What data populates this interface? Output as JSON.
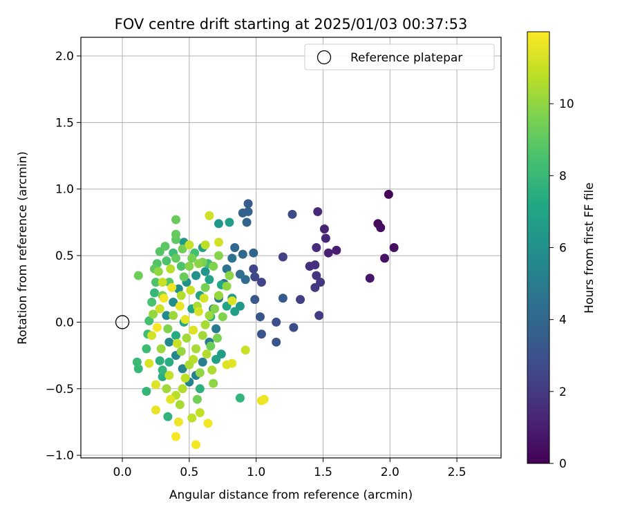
{
  "chart_data": {
    "type": "scatter",
    "title": "FOV centre drift starting at 2025/01/03 00:37:53",
    "xlabel": "Angular distance from reference (arcmin)",
    "ylabel": "Rotation from reference (arcmin)",
    "xlim": [
      -0.31,
      2.83
    ],
    "ylim": [
      -1.02,
      2.14
    ],
    "xticks": [
      0.0,
      0.5,
      1.0,
      1.5,
      2.0,
      2.5
    ],
    "xtick_labels": [
      "0.0",
      "0.5",
      "1.0",
      "1.5",
      "2.0",
      "2.5"
    ],
    "yticks": [
      -1.0,
      -0.5,
      0.0,
      0.5,
      1.0,
      1.5,
      2.0
    ],
    "ytick_labels": [
      "−1.0",
      "−0.5",
      "0.0",
      "0.5",
      "1.0",
      "1.5",
      "2.0"
    ],
    "grid": true,
    "legend": {
      "position": "top-right",
      "entries": [
        "Reference platepar"
      ]
    },
    "reference_point": {
      "x": 0.0,
      "y": 0.0
    },
    "colorbar": {
      "label": "Hours from first FF file",
      "range": [
        0,
        12
      ],
      "ticks": [
        0,
        2,
        4,
        6,
        8,
        10
      ],
      "tick_labels": [
        "0",
        "2",
        "4",
        "6",
        "8",
        "10"
      ],
      "colormap": "viridis"
    },
    "points": [
      {
        "x": 1.99,
        "y": 0.96,
        "c": 0.1
      },
      {
        "x": 1.91,
        "y": 0.74,
        "c": 0.3
      },
      {
        "x": 1.93,
        "y": 0.71,
        "c": 0.4
      },
      {
        "x": 2.03,
        "y": 0.56,
        "c": 0.5
      },
      {
        "x": 1.96,
        "y": 0.48,
        "c": 0.6
      },
      {
        "x": 1.85,
        "y": 0.33,
        "c": 0.8
      },
      {
        "x": 1.6,
        "y": 0.54,
        "c": 1.0
      },
      {
        "x": 1.54,
        "y": 0.52,
        "c": 1.1
      },
      {
        "x": 1.51,
        "y": 0.7,
        "c": 1.2
      },
      {
        "x": 1.52,
        "y": 0.63,
        "c": 1.3
      },
      {
        "x": 1.46,
        "y": 0.83,
        "c": 1.4
      },
      {
        "x": 1.45,
        "y": 0.56,
        "c": 1.5
      },
      {
        "x": 1.4,
        "y": 0.42,
        "c": 1.6
      },
      {
        "x": 1.44,
        "y": 0.43,
        "c": 1.7
      },
      {
        "x": 1.45,
        "y": 0.35,
        "c": 1.8
      },
      {
        "x": 1.48,
        "y": 0.3,
        "c": 1.9
      },
      {
        "x": 1.44,
        "y": 0.26,
        "c": 2.0
      },
      {
        "x": 1.47,
        "y": 0.05,
        "c": 2.1
      },
      {
        "x": 1.33,
        "y": 0.17,
        "c": 2.2
      },
      {
        "x": 1.2,
        "y": 0.49,
        "c": 2.3
      },
      {
        "x": 1.04,
        "y": 0.3,
        "c": 2.4
      },
      {
        "x": 0.98,
        "y": 0.4,
        "c": 2.5
      },
      {
        "x": 0.99,
        "y": 0.34,
        "c": 2.6
      },
      {
        "x": 1.27,
        "y": 0.81,
        "c": 2.7
      },
      {
        "x": 1.28,
        "y": -0.04,
        "c": 2.8
      },
      {
        "x": 1.15,
        "y": 0.0,
        "c": 2.9
      },
      {
        "x": 1.15,
        "y": -0.15,
        "c": 3.0
      },
      {
        "x": 1.04,
        "y": -0.09,
        "c": 3.1
      },
      {
        "x": 1.03,
        "y": 0.04,
        "c": 3.2
      },
      {
        "x": 0.99,
        "y": 0.17,
        "c": 3.3
      },
      {
        "x": 1.2,
        "y": 0.18,
        "c": 3.4
      },
      {
        "x": 0.94,
        "y": 0.89,
        "c": 3.5
      },
      {
        "x": 0.9,
        "y": 0.82,
        "c": 3.6
      },
      {
        "x": 0.94,
        "y": 0.83,
        "c": 3.7
      },
      {
        "x": 0.93,
        "y": 0.75,
        "c": 3.8
      },
      {
        "x": 0.98,
        "y": 0.52,
        "c": 3.9
      },
      {
        "x": 0.9,
        "y": 0.51,
        "c": 4.0
      },
      {
        "x": 0.84,
        "y": 0.56,
        "c": 4.1
      },
      {
        "x": 0.92,
        "y": 0.32,
        "c": 4.2
      },
      {
        "x": 0.88,
        "y": 0.36,
        "c": 4.3
      },
      {
        "x": 0.82,
        "y": 0.48,
        "c": 4.4
      },
      {
        "x": 0.78,
        "y": 0.4,
        "c": 4.5
      },
      {
        "x": 0.76,
        "y": 0.29,
        "c": 4.6
      },
      {
        "x": 0.72,
        "y": 0.18,
        "c": 4.7
      },
      {
        "x": 0.68,
        "y": 0.1,
        "c": 4.8
      },
      {
        "x": 0.7,
        "y": -0.05,
        "c": 4.9
      },
      {
        "x": 0.65,
        "y": -0.15,
        "c": 5.0
      },
      {
        "x": 0.6,
        "y": -0.3,
        "c": 5.1
      },
      {
        "x": 0.55,
        "y": -0.4,
        "c": 5.2
      },
      {
        "x": 0.5,
        "y": -0.45,
        "c": 5.3
      },
      {
        "x": 0.45,
        "y": -0.35,
        "c": 5.4
      },
      {
        "x": 0.4,
        "y": -0.25,
        "c": 5.5
      },
      {
        "x": 0.35,
        "y": -0.15,
        "c": 5.6
      },
      {
        "x": 0.33,
        "y": 0.05,
        "c": 5.7
      },
      {
        "x": 0.38,
        "y": 0.15,
        "c": 5.8
      },
      {
        "x": 0.42,
        "y": 0.25,
        "c": 5.9
      },
      {
        "x": 0.48,
        "y": 0.3,
        "c": 6.0
      },
      {
        "x": 0.55,
        "y": 0.35,
        "c": 6.1
      },
      {
        "x": 0.62,
        "y": 0.38,
        "c": 6.2
      },
      {
        "x": 0.72,
        "y": 0.74,
        "c": 6.3
      },
      {
        "x": 0.88,
        "y": 0.12,
        "c": 6.4
      },
      {
        "x": 0.82,
        "y": 0.18,
        "c": 6.5
      },
      {
        "x": 0.8,
        "y": 0.75,
        "c": 6.6
      },
      {
        "x": 0.74,
        "y": -0.24,
        "c": 6.7
      },
      {
        "x": 0.7,
        "y": -0.28,
        "c": 6.8
      },
      {
        "x": 0.65,
        "y": 0.32,
        "c": 6.9
      },
      {
        "x": 0.58,
        "y": 0.2,
        "c": 7.0
      },
      {
        "x": 0.52,
        "y": 0.1,
        "c": 7.1
      },
      {
        "x": 0.46,
        "y": 0.0,
        "c": 7.2
      },
      {
        "x": 0.4,
        "y": -0.1,
        "c": 7.3
      },
      {
        "x": 0.35,
        "y": -0.3,
        "c": 7.4
      },
      {
        "x": 0.3,
        "y": -0.41,
        "c": 7.5
      },
      {
        "x": 0.28,
        "y": -0.29,
        "c": 7.6
      },
      {
        "x": 0.34,
        "y": -0.71,
        "c": 7.7
      },
      {
        "x": 0.88,
        "y": -0.57,
        "c": 7.8
      },
      {
        "x": 0.18,
        "y": -0.52,
        "c": 7.9
      },
      {
        "x": 0.12,
        "y": -0.35,
        "c": 8.0
      },
      {
        "x": 0.11,
        "y": -0.3,
        "c": 8.1
      },
      {
        "x": 0.18,
        "y": -0.2,
        "c": 8.2
      },
      {
        "x": 0.19,
        "y": -0.09,
        "c": 8.3
      },
      {
        "x": 0.2,
        "y": 0.01,
        "c": 8.4
      },
      {
        "x": 0.22,
        "y": 0.15,
        "c": 8.5
      },
      {
        "x": 0.25,
        "y": 0.3,
        "c": 8.6
      },
      {
        "x": 0.26,
        "y": 0.44,
        "c": 8.7
      },
      {
        "x": 0.28,
        "y": 0.53,
        "c": 8.8
      },
      {
        "x": 0.32,
        "y": 0.57,
        "c": 8.9
      },
      {
        "x": 0.4,
        "y": 0.62,
        "c": 9.0
      },
      {
        "x": 0.4,
        "y": 0.66,
        "c": 9.1
      },
      {
        "x": 0.4,
        "y": 0.77,
        "c": 9.2
      },
      {
        "x": 0.12,
        "y": 0.35,
        "c": 9.3
      },
      {
        "x": 0.45,
        "y": 0.55,
        "c": 9.4
      },
      {
        "x": 0.52,
        "y": 0.48,
        "c": 9.5
      },
      {
        "x": 0.6,
        "y": 0.45,
        "c": 9.6
      },
      {
        "x": 0.68,
        "y": 0.42,
        "c": 9.7
      },
      {
        "x": 0.72,
        "y": 0.5,
        "c": 9.8
      },
      {
        "x": 0.8,
        "y": 0.35,
        "c": 9.9
      },
      {
        "x": 0.78,
        "y": 0.27,
        "c": 10.0
      },
      {
        "x": 0.72,
        "y": 0.2,
        "c": 10.1
      },
      {
        "x": 0.65,
        "y": 0.05,
        "c": 10.2
      },
      {
        "x": 0.6,
        "y": -0.1,
        "c": 10.3
      },
      {
        "x": 0.55,
        "y": -0.2,
        "c": 10.4
      },
      {
        "x": 0.5,
        "y": -0.32,
        "c": 10.5
      },
      {
        "x": 0.45,
        "y": -0.5,
        "c": 10.6
      },
      {
        "x": 0.4,
        "y": -0.55,
        "c": 10.7
      },
      {
        "x": 0.52,
        "y": -0.72,
        "c": 10.8
      },
      {
        "x": 0.58,
        "y": -0.68,
        "c": 10.9
      },
      {
        "x": 0.92,
        "y": -0.21,
        "c": 11.0
      },
      {
        "x": 0.65,
        "y": 0.8,
        "c": 11.1
      },
      {
        "x": 0.72,
        "y": 0.6,
        "c": 11.2
      },
      {
        "x": 0.82,
        "y": 0.16,
        "c": 11.3
      },
      {
        "x": 0.78,
        "y": -0.32,
        "c": 11.4
      },
      {
        "x": 0.82,
        "y": -0.31,
        "c": 11.5
      },
      {
        "x": 1.04,
        "y": -0.59,
        "c": 11.6
      },
      {
        "x": 1.06,
        "y": -0.58,
        "c": 11.7
      },
      {
        "x": 0.55,
        "y": -0.92,
        "c": 11.8
      },
      {
        "x": 0.4,
        "y": -0.86,
        "c": 11.9
      },
      {
        "x": 0.64,
        "y": -0.76,
        "c": 11.8
      },
      {
        "x": 0.42,
        "y": -0.75,
        "c": 11.7
      },
      {
        "x": 0.25,
        "y": -0.66,
        "c": 11.6
      },
      {
        "x": 0.36,
        "y": -0.58,
        "c": 11.5
      },
      {
        "x": 0.25,
        "y": -0.47,
        "c": 11.4
      },
      {
        "x": 0.2,
        "y": -0.31,
        "c": 11.3
      },
      {
        "x": 0.22,
        "y": -0.1,
        "c": 11.2
      },
      {
        "x": 0.28,
        "y": 0.1,
        "c": 11.1
      },
      {
        "x": 0.3,
        "y": 0.3,
        "c": 11.0
      },
      {
        "x": 0.5,
        "y": 0.58,
        "c": 10.9
      },
      {
        "x": 0.62,
        "y": 0.58,
        "c": 10.8
      },
      {
        "x": 0.36,
        "y": 0.4,
        "c": 10.7
      },
      {
        "x": 0.44,
        "y": 0.2,
        "c": 10.6
      },
      {
        "x": 0.56,
        "y": 0.12,
        "c": 10.5
      },
      {
        "x": 0.62,
        "y": -0.02,
        "c": 10.4
      },
      {
        "x": 0.48,
        "y": -0.12,
        "c": 10.3
      },
      {
        "x": 0.38,
        "y": 0.05,
        "c": 10.2
      },
      {
        "x": 0.44,
        "y": -0.22,
        "c": 10.1
      },
      {
        "x": 0.58,
        "y": -0.38,
        "c": 10.0
      },
      {
        "x": 0.68,
        "y": -0.46,
        "c": 9.9
      },
      {
        "x": 0.5,
        "y": 0.42,
        "c": 9.8
      },
      {
        "x": 0.34,
        "y": -0.05,
        "c": 9.7
      },
      {
        "x": 0.3,
        "y": 0.2,
        "c": 9.6
      },
      {
        "x": 0.62,
        "y": 0.26,
        "c": 9.5
      },
      {
        "x": 0.56,
        "y": -0.58,
        "c": 9.4
      },
      {
        "x": 0.66,
        "y": -0.18,
        "c": 9.3
      },
      {
        "x": 0.46,
        "y": 0.34,
        "c": 9.2
      },
      {
        "x": 0.4,
        "y": 0.48,
        "c": 9.1
      },
      {
        "x": 0.26,
        "y": -0.04,
        "c": 11.9
      },
      {
        "x": 0.31,
        "y": 0.18,
        "c": 11.8
      },
      {
        "x": 0.37,
        "y": 0.26,
        "c": 11.7
      },
      {
        "x": 0.43,
        "y": 0.12,
        "c": 11.6
      },
      {
        "x": 0.47,
        "y": 0.02,
        "c": 11.5
      },
      {
        "x": 0.53,
        "y": -0.06,
        "c": 11.4
      },
      {
        "x": 0.57,
        "y": 0.08,
        "c": 11.3
      },
      {
        "x": 0.61,
        "y": 0.18,
        "c": 11.2
      },
      {
        "x": 0.51,
        "y": 0.24,
        "c": 11.1
      },
      {
        "x": 0.41,
        "y": -0.16,
        "c": 11.0
      },
      {
        "x": 0.35,
        "y": -0.4,
        "c": 10.9
      },
      {
        "x": 0.47,
        "y": -0.42,
        "c": 10.8
      },
      {
        "x": 0.53,
        "y": -0.28,
        "c": 10.7
      },
      {
        "x": 0.63,
        "y": -0.24,
        "c": 10.6
      },
      {
        "x": 0.67,
        "y": -0.36,
        "c": 10.5
      },
      {
        "x": 0.43,
        "y": -0.62,
        "c": 10.4
      },
      {
        "x": 0.33,
        "y": -0.5,
        "c": 10.3
      },
      {
        "x": 0.29,
        "y": -0.2,
        "c": 10.2
      },
      {
        "x": 0.23,
        "y": 0.06,
        "c": 10.1
      },
      {
        "x": 0.27,
        "y": 0.38,
        "c": 10.0
      },
      {
        "x": 0.57,
        "y": 0.44,
        "c": 9.9
      },
      {
        "x": 0.69,
        "y": 0.1,
        "c": 9.8
      },
      {
        "x": 0.75,
        "y": 0.04,
        "c": 9.7
      },
      {
        "x": 0.71,
        "y": -0.12,
        "c": 9.6
      },
      {
        "x": 0.35,
        "y": 0.3,
        "c": 8.8
      },
      {
        "x": 0.44,
        "y": 0.42,
        "c": 8.6
      },
      {
        "x": 0.54,
        "y": 0.52,
        "c": 8.4
      },
      {
        "x": 0.64,
        "y": 0.44,
        "c": 8.2
      },
      {
        "x": 0.24,
        "y": 0.22,
        "c": 8.0
      },
      {
        "x": 0.3,
        "y": -0.36,
        "c": 7.8
      },
      {
        "x": 0.58,
        "y": -0.5,
        "c": 7.6
      },
      {
        "x": 0.66,
        "y": 0.04,
        "c": 7.4
      },
      {
        "x": 0.74,
        "y": 0.28,
        "c": 7.2
      },
      {
        "x": 0.78,
        "y": 0.12,
        "c": 7.0
      },
      {
        "x": 0.84,
        "y": 0.08,
        "c": 6.8
      },
      {
        "x": 0.6,
        "y": 0.56,
        "c": 6.6
      },
      {
        "x": 0.46,
        "y": 0.6,
        "c": 6.4
      },
      {
        "x": 0.38,
        "y": 0.52,
        "c": 8.2
      },
      {
        "x": 0.33,
        "y": 0.46,
        "c": 8.6
      },
      {
        "x": 0.24,
        "y": 0.4,
        "c": 9.0
      }
    ]
  }
}
